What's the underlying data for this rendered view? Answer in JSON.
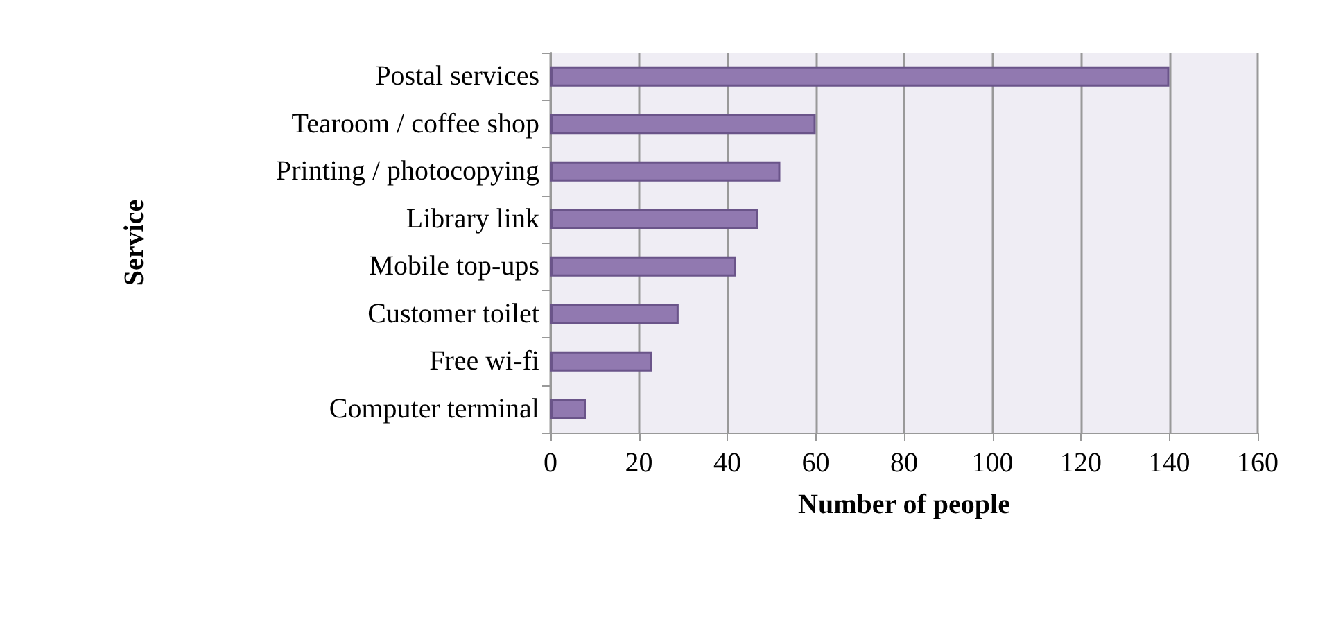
{
  "chart_data": {
    "type": "bar",
    "orientation": "horizontal",
    "xlabel": "Number of people",
    "ylabel": "Service",
    "categories": [
      "Postal services",
      "Tearoom / coffee shop",
      "Printing / photocopying",
      "Library link",
      "Mobile top-ups",
      "Customer toilet",
      "Free wi-fi",
      "Computer terminal"
    ],
    "values": [
      140,
      60,
      52,
      47,
      42,
      29,
      23,
      8
    ],
    "color": "#9179b0",
    "xlim": [
      0,
      160
    ],
    "xticks": [
      0,
      20,
      40,
      60,
      80,
      100,
      120,
      140,
      160
    ],
    "grid": "x"
  }
}
